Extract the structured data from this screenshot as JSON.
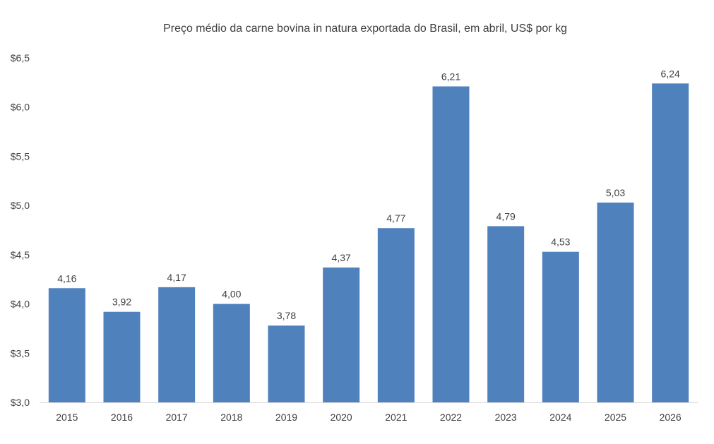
{
  "chart_data": {
    "type": "bar",
    "title": "Preço médio da carne bovina in natura exportada do Brasil, em abril, US$ por kg",
    "xlabel": "",
    "ylabel": "",
    "categories": [
      "2015",
      "2016",
      "2017",
      "2018",
      "2019",
      "2020",
      "2021",
      "2022",
      "2023",
      "2024",
      "2025",
      "2026"
    ],
    "values": [
      4.16,
      3.92,
      4.17,
      4.0,
      3.78,
      4.37,
      4.77,
      6.21,
      4.79,
      4.53,
      5.03,
      6.24
    ],
    "data_labels": [
      "4,16",
      "3,92",
      "4,17",
      "4,00",
      "3,78",
      "4,37",
      "4,77",
      "6,21",
      "4,79",
      "4,53",
      "5,03",
      "6,24"
    ],
    "ylim": [
      3.0,
      6.5
    ],
    "y_ticks": [
      3.0,
      3.5,
      4.0,
      4.5,
      5.0,
      5.5,
      6.0,
      6.5
    ],
    "y_tick_labels": [
      "$3,0",
      "$3,5",
      "$4,0",
      "$4,5",
      "$5,0",
      "$5,5",
      "$6,0",
      "$6,5"
    ],
    "grid": false,
    "legend": "none",
    "bar_color": "#4f81bd"
  }
}
